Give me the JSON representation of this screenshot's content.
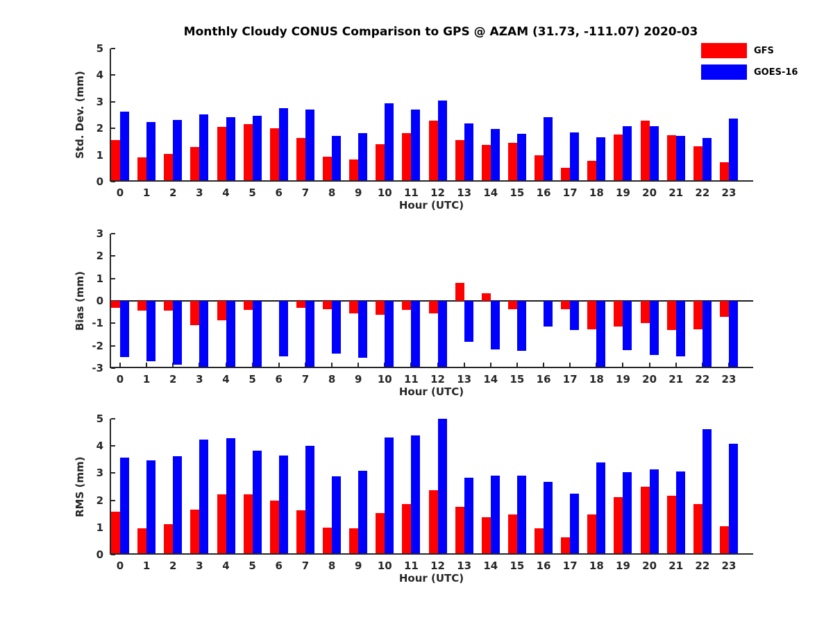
{
  "title": "Monthly Cloudy CONUS Comparison to GPS @ AZAM (31.73, -111.07) 2020-03",
  "legend": {
    "items": [
      {
        "label": "GFS",
        "color": "#ff0000"
      },
      {
        "label": "GOES-16",
        "color": "#0000ff"
      }
    ]
  },
  "colors": {
    "gfs": "#ff0000",
    "goes16": "#0000ff",
    "axis": "#262626"
  },
  "chart_data": [
    {
      "type": "bar",
      "ylabel": "Std. Dev. (mm)",
      "xlabel": "Hour (UTC)",
      "ylim": [
        0,
        5
      ],
      "yticks": [
        0,
        1,
        2,
        3,
        4,
        5
      ],
      "grid": false,
      "legend_position": "top-right-outside",
      "categories": [
        0,
        1,
        2,
        3,
        4,
        5,
        6,
        7,
        8,
        9,
        10,
        11,
        12,
        13,
        14,
        15,
        16,
        17,
        18,
        19,
        20,
        21,
        22,
        23
      ],
      "series": [
        {
          "name": "GFS",
          "color": "#ff0000",
          "values": [
            1.55,
            0.92,
            1.05,
            1.3,
            2.07,
            2.17,
            2.0,
            1.65,
            0.95,
            0.83,
            1.4,
            1.82,
            2.3,
            1.57,
            1.37,
            1.45,
            1.0,
            0.52,
            0.78,
            1.78,
            2.28,
            1.75,
            1.33,
            0.73
          ]
        },
        {
          "name": "GOES-16",
          "color": "#0000ff",
          "values": [
            2.62,
            2.23,
            2.31,
            2.52,
            2.43,
            2.47,
            2.77,
            2.72,
            1.72,
            1.82,
            2.95,
            2.72,
            3.05,
            2.2,
            1.97,
            1.8,
            2.43,
            1.85,
            1.67,
            2.08,
            2.08,
            1.73,
            1.64,
            2.36
          ]
        }
      ]
    },
    {
      "type": "bar",
      "ylabel": "Bias (mm)",
      "xlabel": "Hour (UTC)",
      "ylim": [
        -3,
        3
      ],
      "yticks": [
        -3,
        -2,
        -1,
        0,
        1,
        2,
        3
      ],
      "grid": false,
      "categories": [
        0,
        1,
        2,
        3,
        4,
        5,
        6,
        7,
        8,
        9,
        10,
        11,
        12,
        13,
        14,
        15,
        16,
        17,
        18,
        19,
        20,
        21,
        22,
        23
      ],
      "series": [
        {
          "name": "GFS",
          "color": "#ff0000",
          "values": [
            -0.32,
            -0.43,
            -0.43,
            -1.08,
            -0.88,
            -0.4,
            0,
            -0.3,
            -0.38,
            -0.55,
            -0.63,
            -0.4,
            -0.56,
            0.81,
            0.34,
            -0.38,
            0,
            -0.38,
            -1.28,
            -1.14,
            -1.0,
            -1.29,
            -1.26,
            -0.72
          ]
        },
        {
          "name": "GOES-16",
          "color": "#0000ff",
          "values": [
            -2.5,
            -2.7,
            -2.84,
            -3.0,
            -3.0,
            -3.0,
            -2.47,
            -3.0,
            -2.35,
            -2.53,
            -3.0,
            -3.0,
            -3.0,
            -1.83,
            -2.17,
            -2.24,
            -1.14,
            -1.31,
            -3.0,
            -2.21,
            -2.4,
            -2.48,
            -3.0,
            -3.0
          ]
        }
      ]
    },
    {
      "type": "bar",
      "ylabel": "RMS (mm)",
      "xlabel": "Hour (UTC)",
      "ylim": [
        0,
        5
      ],
      "yticks": [
        0,
        1,
        2,
        3,
        4,
        5
      ],
      "grid": false,
      "categories": [
        0,
        1,
        2,
        3,
        4,
        5,
        6,
        7,
        8,
        9,
        10,
        11,
        12,
        13,
        14,
        15,
        16,
        17,
        18,
        19,
        20,
        21,
        22,
        23
      ],
      "series": [
        {
          "name": "GFS",
          "color": "#ff0000",
          "values": [
            1.58,
            0.98,
            1.13,
            1.66,
            2.21,
            2.21,
            1.98,
            1.64,
            1.0,
            0.98,
            1.53,
            1.85,
            2.38,
            1.76,
            1.39,
            1.49,
            0.96,
            0.64,
            1.49,
            2.13,
            2.49,
            2.17,
            1.87,
            1.04
          ]
        },
        {
          "name": "GOES-16",
          "color": "#0000ff",
          "values": [
            3.57,
            3.47,
            3.61,
            4.23,
            4.28,
            3.83,
            3.66,
            4.01,
            2.87,
            3.08,
            4.32,
            4.38,
            5.0,
            2.83,
            2.91,
            2.91,
            2.68,
            2.25,
            3.4,
            3.04,
            3.15,
            3.06,
            4.63,
            4.08
          ]
        }
      ]
    }
  ]
}
